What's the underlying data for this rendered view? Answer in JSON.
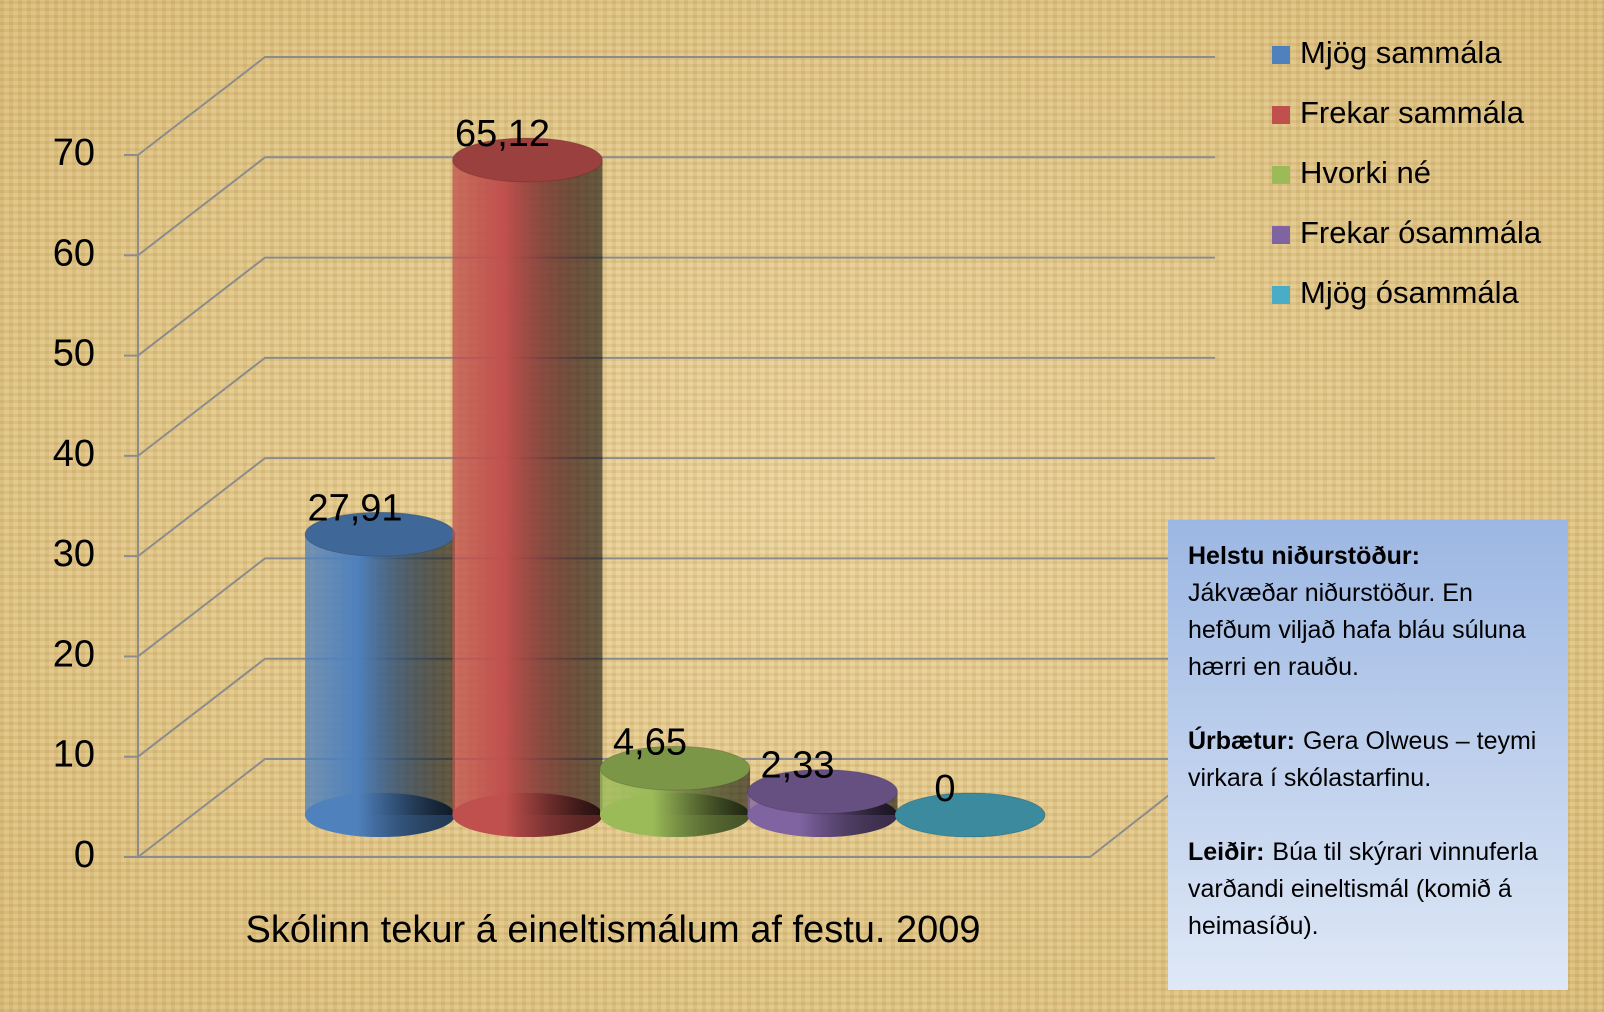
{
  "chart_data": {
    "type": "bar3d",
    "title": "Skólinn tekur á eineltismálum af festu. 2009",
    "categories": [
      null
    ],
    "series": [
      {
        "name": "Mjög sammála",
        "color": "#4f81bd",
        "values": [
          27.91
        ],
        "value_labels": [
          "27,91"
        ]
      },
      {
        "name": "Frekar sammála",
        "color": "#c0504d",
        "values": [
          65.12
        ],
        "value_labels": [
          "65,12"
        ]
      },
      {
        "name": "Hvorki né",
        "color": "#9bbb59",
        "values": [
          4.65
        ],
        "value_labels": [
          "4,65"
        ]
      },
      {
        "name": "Frekar ósammála",
        "color": "#8064a2",
        "values": [
          2.33
        ],
        "value_labels": [
          "2,33"
        ]
      },
      {
        "name": "Mjög ósammála",
        "color": "#4bacc6",
        "values": [
          0
        ],
        "value_labels": [
          "0"
        ]
      }
    ],
    "ylim": [
      0,
      70
    ],
    "yticks": [
      0,
      10,
      20,
      30,
      40,
      50,
      60,
      70
    ],
    "grid": true,
    "legend": "right"
  },
  "note": {
    "paragraphs": [
      {
        "bold": "Helstu niðurstöður:",
        "text": "Jákvæðar niðurstöður. En hefðum viljað hafa bláu súluna hærri en rauðu."
      },
      {
        "bold": "Úrbætur:",
        "text": "Gera Olweus – teymi virkara í skólastarfinu."
      },
      {
        "bold": "Leiðir:",
        "text": "Búa til skýrari vinnuferla varðandi eineltismál (komið á heimasíðu)."
      }
    ]
  }
}
